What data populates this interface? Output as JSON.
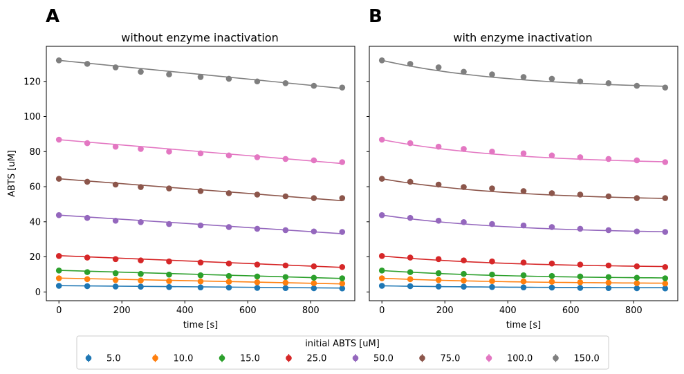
{
  "chart_data": [
    {
      "type": "scatter",
      "panel_label": "A",
      "title": "without enzyme inactivation",
      "xlabel": "time [s]",
      "ylabel": "ABTS [uM]",
      "xlim": [
        -40,
        940
      ],
      "ylim": [
        -5,
        140
      ],
      "xticks": [
        0,
        200,
        400,
        600,
        800
      ],
      "yticks": [
        0,
        20,
        40,
        60,
        80,
        100,
        120
      ],
      "x": [
        0,
        90,
        180,
        260,
        350,
        450,
        540,
        630,
        720,
        810,
        900
      ],
      "series": [
        {
          "name": "5.0",
          "color": "#1f77b4",
          "points": [
            3.5,
            3.3,
            3.1,
            3.0,
            2.8,
            2.6,
            2.5,
            2.3,
            2.2,
            2.1,
            2.0
          ],
          "fit": [
            3.6,
            2.2
          ]
        },
        {
          "name": "10.0",
          "color": "#ff7f0e",
          "points": [
            7.8,
            7.3,
            6.8,
            6.5,
            6.2,
            6.0,
            5.8,
            5.5,
            5.3,
            5.0,
            4.8
          ],
          "fit": [
            7.9,
            4.6
          ]
        },
        {
          "name": "15.0",
          "color": "#2ca02c",
          "points": [
            12.2,
            11.3,
            10.7,
            10.3,
            9.9,
            9.5,
            9.1,
            8.8,
            8.5,
            8.1,
            7.8
          ],
          "fit": [
            12.3,
            7.7
          ]
        },
        {
          "name": "25.0",
          "color": "#d62728",
          "points": [
            20.5,
            19.6,
            18.7,
            18.0,
            17.4,
            16.8,
            16.2,
            15.6,
            15.1,
            14.6,
            14.2
          ],
          "fit": [
            20.7,
            14.0
          ]
        },
        {
          "name": "50.0",
          "color": "#9467bd",
          "points": [
            43.8,
            42.2,
            40.6,
            39.8,
            38.7,
            37.9,
            37.0,
            36.0,
            35.2,
            34.5,
            34.2
          ],
          "fit": [
            43.8,
            33.2
          ]
        },
        {
          "name": "75.0",
          "color": "#8c564b",
          "points": [
            64.5,
            62.8,
            61.2,
            59.8,
            59.0,
            57.5,
            56.3,
            55.5,
            54.5,
            53.5,
            53.5
          ],
          "fit": [
            64.5,
            52.0
          ]
        },
        {
          "name": "100.0",
          "color": "#e377c2",
          "points": [
            86.8,
            84.8,
            82.8,
            81.5,
            80.0,
            79.0,
            77.8,
            76.8,
            75.8,
            75.0,
            74.0
          ],
          "fit": [
            86.8,
            73.2
          ]
        },
        {
          "name": "150.0",
          "color": "#7f7f7f",
          "points": [
            132.0,
            130.0,
            128.0,
            125.5,
            124.0,
            122.5,
            121.5,
            120.0,
            119.0,
            117.5,
            116.5
          ],
          "fit": [
            132.0,
            116.0
          ]
        }
      ]
    },
    {
      "type": "scatter",
      "panel_label": "B",
      "title": "with enzyme inactivation",
      "xlabel": "time [s]",
      "ylabel": "",
      "xlim": [
        -40,
        940
      ],
      "ylim": [
        -5,
        140
      ],
      "xticks": [
        0,
        200,
        400,
        600,
        800
      ],
      "yticks": [
        0,
        20,
        40,
        60,
        80,
        100,
        120
      ],
      "x": [
        0,
        90,
        180,
        260,
        350,
        450,
        540,
        630,
        720,
        810,
        900
      ],
      "series": [
        {
          "name": "5.0",
          "color": "#1f77b4",
          "points": [
            3.5,
            3.3,
            3.1,
            3.0,
            2.8,
            2.6,
            2.5,
            2.3,
            2.2,
            2.1,
            2.0
          ],
          "curve_end": 2.4
        },
        {
          "name": "10.0",
          "color": "#ff7f0e",
          "points": [
            7.8,
            7.3,
            6.8,
            6.5,
            6.2,
            6.0,
            5.8,
            5.5,
            5.3,
            5.0,
            4.8
          ],
          "curve_end": 5.0
        },
        {
          "name": "15.0",
          "color": "#2ca02c",
          "points": [
            12.2,
            11.3,
            10.7,
            10.3,
            9.9,
            9.5,
            9.1,
            8.8,
            8.5,
            8.1,
            7.8
          ],
          "curve_end": 8.0
        },
        {
          "name": "25.0",
          "color": "#d62728",
          "points": [
            20.5,
            19.6,
            18.7,
            18.0,
            17.4,
            16.8,
            16.2,
            15.6,
            15.1,
            14.6,
            14.2
          ],
          "curve_end": 14.5
        },
        {
          "name": "50.0",
          "color": "#9467bd",
          "points": [
            43.8,
            42.2,
            40.6,
            39.8,
            38.7,
            37.9,
            37.0,
            36.0,
            35.2,
            34.5,
            34.2
          ],
          "curve_end": 34.3
        },
        {
          "name": "75.0",
          "color": "#8c564b",
          "points": [
            64.5,
            62.8,
            61.2,
            59.8,
            59.0,
            57.5,
            56.3,
            55.5,
            54.5,
            53.5,
            53.5
          ],
          "curve_end": 53.3
        },
        {
          "name": "100.0",
          "color": "#e377c2",
          "points": [
            86.8,
            84.8,
            82.8,
            81.5,
            80.0,
            79.0,
            77.8,
            76.8,
            75.8,
            75.0,
            74.0
          ],
          "curve_end": 74.2
        },
        {
          "name": "150.0",
          "color": "#7f7f7f",
          "points": [
            132.0,
            130.0,
            128.0,
            125.5,
            124.0,
            122.5,
            121.5,
            120.0,
            119.0,
            117.5,
            116.5
          ],
          "curve_end": 117.2
        }
      ]
    }
  ],
  "legend": {
    "title": "initial ABTS [uM]",
    "placement": "bottom-center",
    "entries": [
      "5.0",
      "10.0",
      "15.0",
      "25.0",
      "50.0",
      "75.0",
      "100.0",
      "150.0"
    ]
  }
}
